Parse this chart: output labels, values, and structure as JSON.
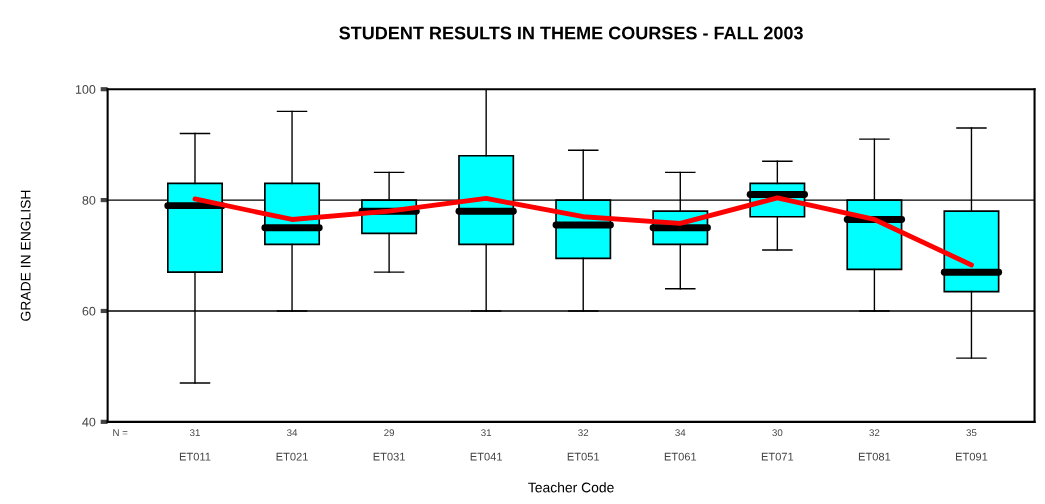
{
  "chart_data": {
    "type": "box",
    "title": "STUDENT RESULTS IN THEME COURSES - FALL 2003",
    "xlabel": "Teacher Code",
    "ylabel": "GRADE IN ENGLISH",
    "categories": [
      "ET011",
      "ET021",
      "ET031",
      "ET041",
      "ET051",
      "ET061",
      "ET071",
      "ET081",
      "ET091"
    ],
    "series": [
      {
        "color": "#00ffff",
        "boxes": [
          {
            "low": 47,
            "q1": 67,
            "median": 79,
            "q3": 83,
            "high": 92
          },
          {
            "low": 60,
            "q1": 72,
            "median": 75,
            "q3": 83,
            "high": 96
          },
          {
            "low": 67,
            "q1": 74,
            "median": 78,
            "q3": 80,
            "high": 85
          },
          {
            "low": 60,
            "q1": 72,
            "median": 78,
            "q3": 88,
            "high": 100
          },
          {
            "low": 60,
            "q1": 69.5,
            "median": 75.5,
            "q3": 80,
            "high": 89
          },
          {
            "low": 64,
            "q1": 72,
            "median": 75,
            "q3": 78,
            "high": 85
          },
          {
            "low": 71,
            "q1": 77,
            "median": 81,
            "q3": 83,
            "high": 87
          },
          {
            "low": 60,
            "q1": 67.5,
            "median": 76.5,
            "q3": 80,
            "high": 91
          },
          {
            "low": 51.5,
            "q1": 63.5,
            "median": 67,
            "q3": 78,
            "high": 93
          }
        ]
      },
      {
        "type": "line",
        "color": "#ff0000",
        "values": [
          80.2,
          76.5,
          78,
          80.3,
          77,
          75.8,
          80.4,
          76.5,
          68.3
        ]
      }
    ],
    "ylim": [
      40,
      100
    ],
    "yticks": [
      40,
      60,
      80,
      100
    ],
    "grid": "y",
    "marker": "none",
    "annotations": [
      "N =",
      "31",
      "34",
      "29",
      "31",
      "32",
      "34",
      "30",
      "32",
      "35"
    ]
  }
}
